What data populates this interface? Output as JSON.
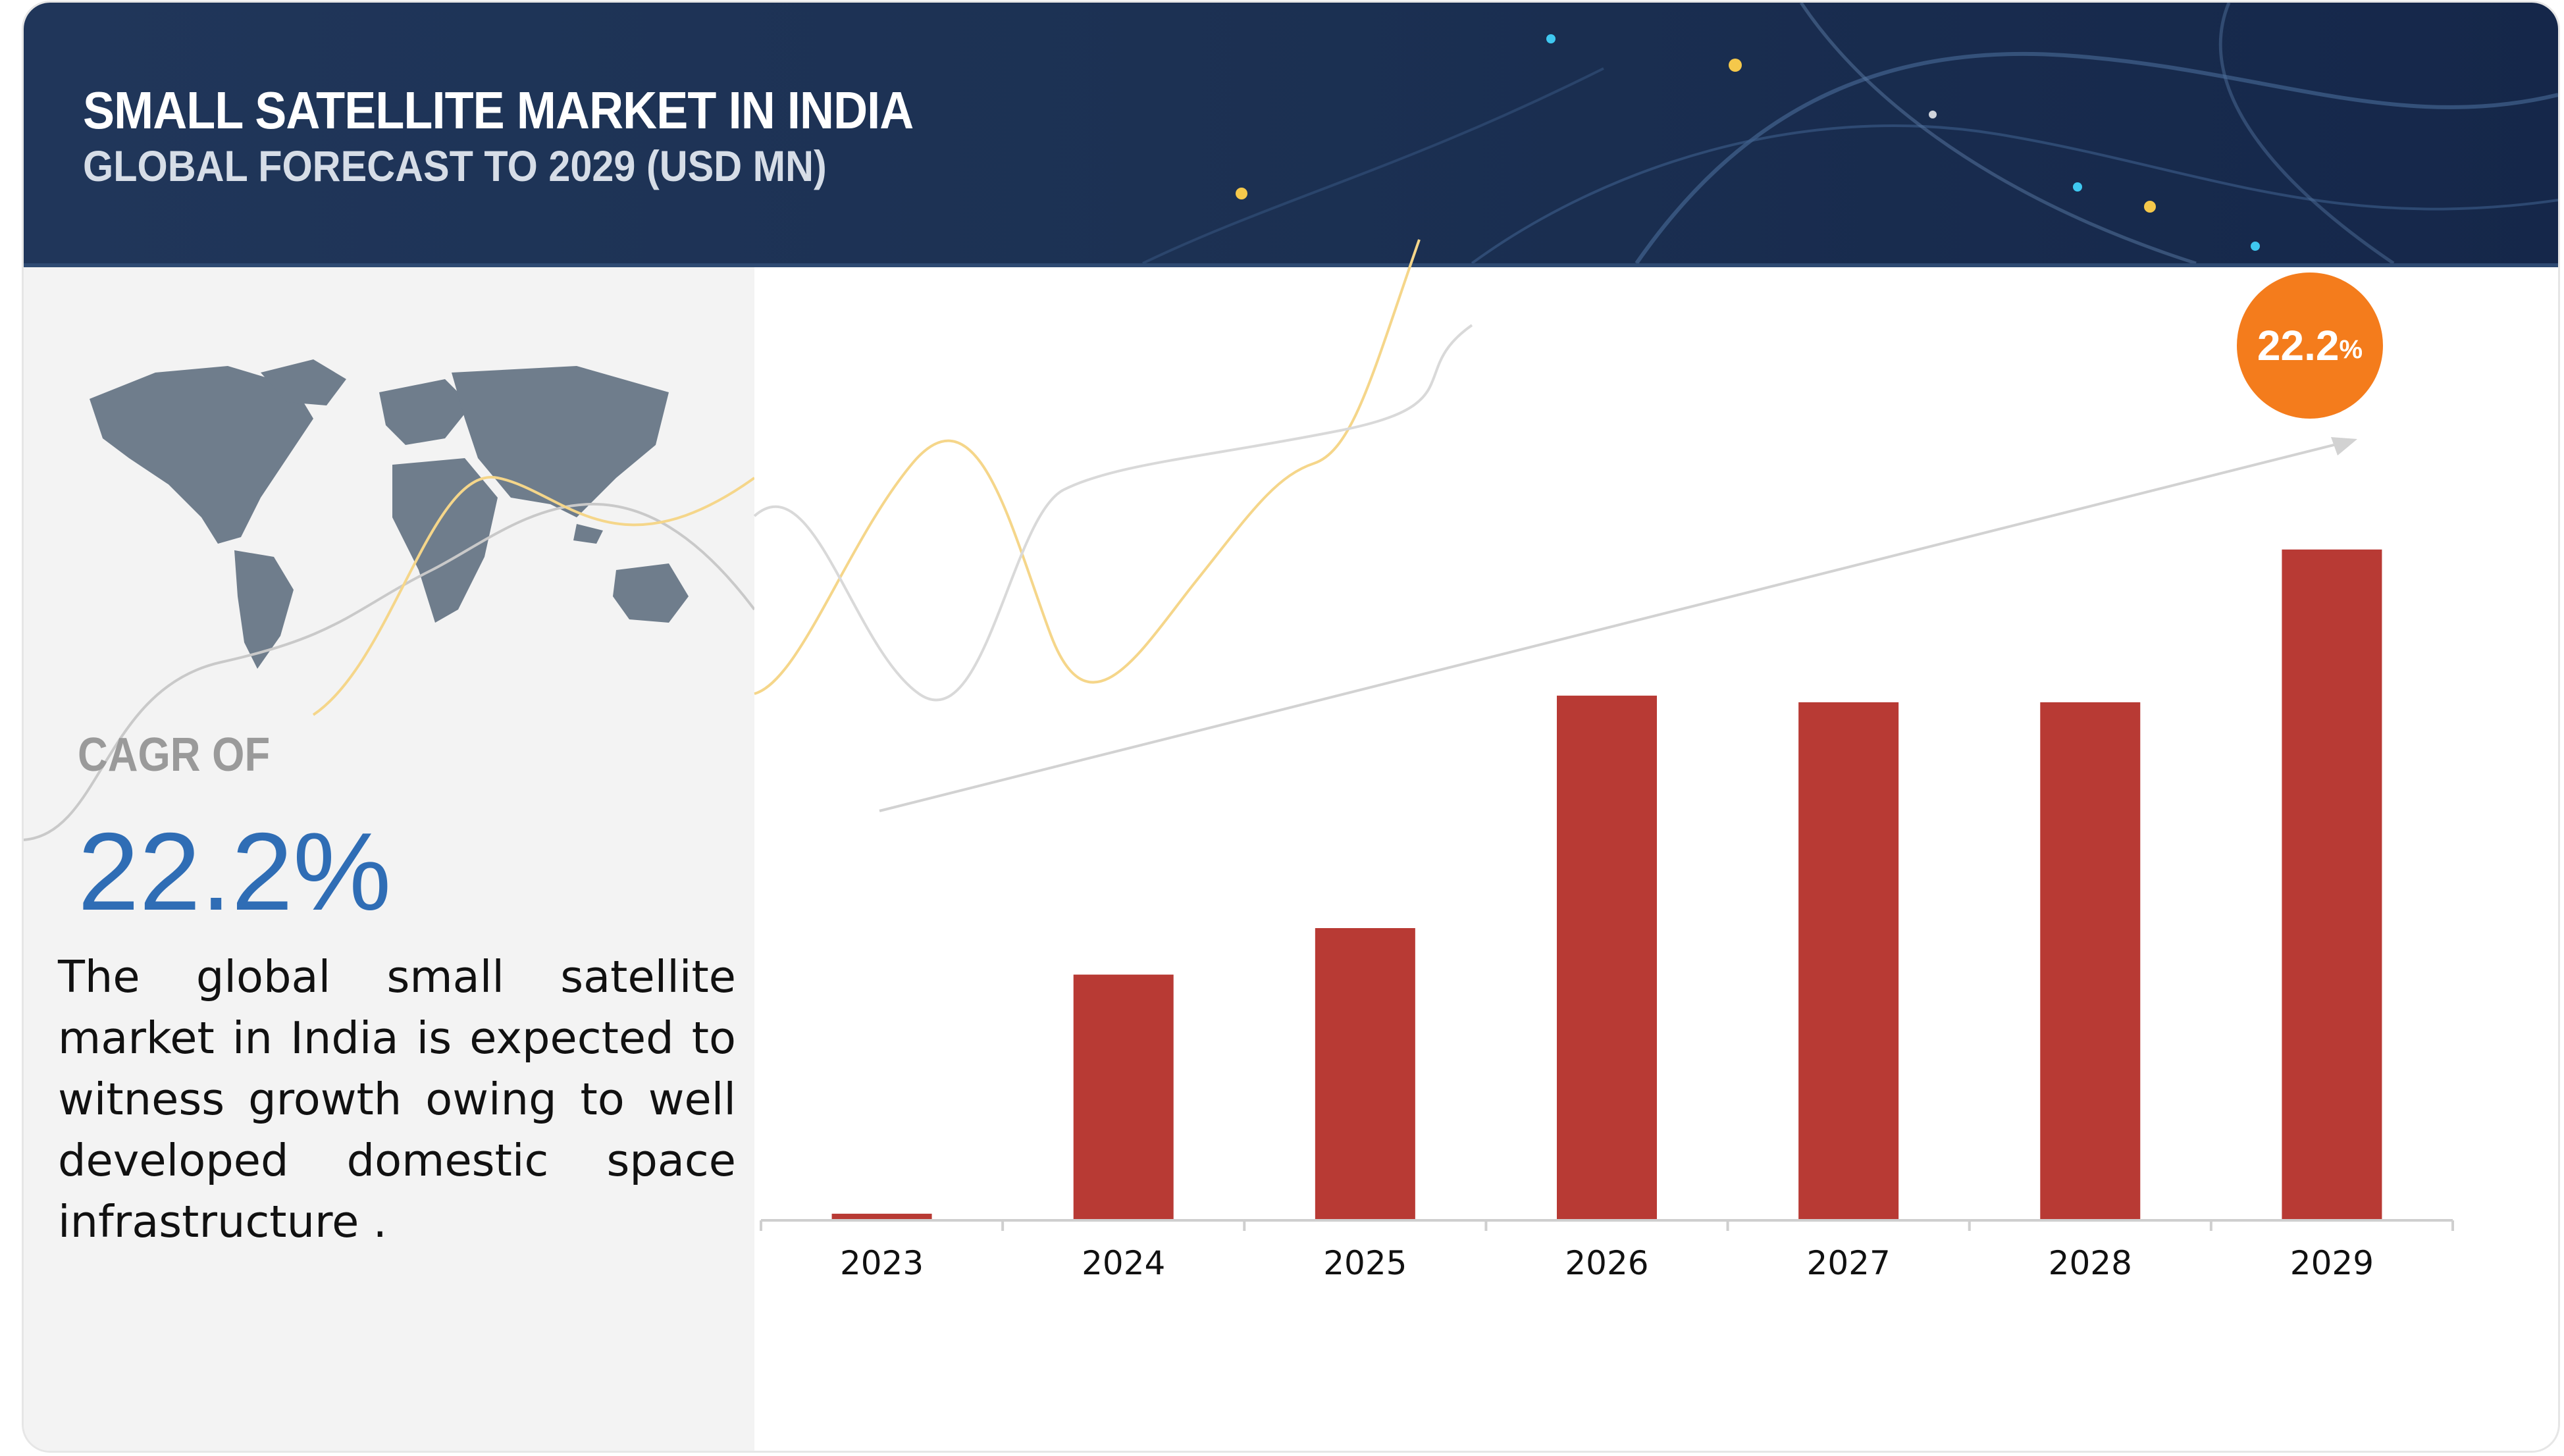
{
  "header": {
    "title": "SMALL SATELLITE MARKET IN INDIA",
    "subtitle": "GLOBAL FORECAST TO 2029 (USD MN)"
  },
  "left_panel": {
    "cagr_label": "CAGR OF",
    "cagr_value": "22.2%",
    "description": "The global small satellite market in India is expected to witness growth owing to well developed domestic space infrastructure ."
  },
  "badge": {
    "number": "22.2",
    "unit": "%"
  },
  "colors": {
    "bar": "#b83a34",
    "header_bg": "#1c3153",
    "accent_blue": "#2f6db5",
    "badge": "#f47c1c"
  },
  "chart_data": {
    "type": "bar",
    "categories": [
      "2023",
      "2024",
      "2025",
      "2026",
      "2027",
      "2028",
      "2029"
    ],
    "values": [
      1,
      37,
      44,
      79,
      78,
      78,
      101
    ],
    "ylim": [
      0,
      110
    ],
    "grid": false,
    "legend": "none",
    "trend_arrow": true,
    "title": "",
    "xlabel": "",
    "ylabel": ""
  }
}
